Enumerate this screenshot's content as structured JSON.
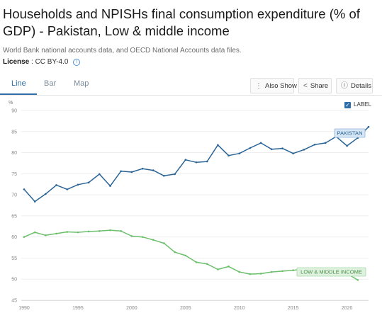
{
  "header": {
    "title": "Households and NPISHs final consumption expenditure (% of GDP) - Pakistan, Low & middle income",
    "source": "World Bank national accounts data, and OECD National Accounts data files.",
    "license_label": "License",
    "license_value": ": CC BY-4.0"
  },
  "tabs": [
    {
      "label": "Line",
      "active": true
    },
    {
      "label": "Bar",
      "active": false
    },
    {
      "label": "Map",
      "active": false
    }
  ],
  "actions": {
    "also_show": "Also Show",
    "share": "Share",
    "details": "Details"
  },
  "label_toggle": {
    "text": "LABEL",
    "checked": true
  },
  "colors": {
    "pakistan": "#2a6496",
    "lmi": "#6cbf6c",
    "accent": "#2f6ea8"
  },
  "chart_data": {
    "type": "line",
    "ylabel": "%",
    "ylim": [
      45,
      90
    ],
    "yticks": [
      "45",
      "50",
      "55",
      "60",
      "65",
      "70",
      "75",
      "80",
      "85",
      "90"
    ],
    "xlim": [
      1990,
      2022
    ],
    "xticks": [
      "1990",
      "1995",
      "2000",
      "2005",
      "2010",
      "2015",
      "2020"
    ],
    "grid": true,
    "series": [
      {
        "name": "PAKISTAN",
        "x": [
          1990,
          1991,
          1992,
          1993,
          1994,
          1995,
          1996,
          1997,
          1998,
          1999,
          2000,
          2001,
          2002,
          2003,
          2004,
          2005,
          2006,
          2007,
          2008,
          2009,
          2010,
          2011,
          2012,
          2013,
          2014,
          2015,
          2016,
          2017,
          2018,
          2019,
          2020,
          2021,
          2022
        ],
        "values": [
          71.3,
          68.4,
          70.2,
          72.3,
          71.3,
          72.4,
          72.9,
          74.9,
          72.1,
          75.6,
          75.4,
          76.2,
          75.8,
          74.5,
          74.9,
          78.3,
          77.7,
          77.9,
          81.8,
          79.3,
          79.8,
          81.1,
          82.3,
          80.8,
          81.0,
          79.8,
          80.7,
          81.9,
          82.3,
          83.8,
          81.6,
          83.5,
          86.1
        ]
      },
      {
        "name": "LOW & MIDDLE INCOME",
        "x": [
          1990,
          1991,
          1992,
          1993,
          1994,
          1995,
          1996,
          1997,
          1998,
          1999,
          2000,
          2001,
          2002,
          2003,
          2004,
          2005,
          2006,
          2007,
          2008,
          2009,
          2010,
          2011,
          2012,
          2013,
          2014,
          2015,
          2016,
          2017,
          2018,
          2019,
          2020,
          2021
        ],
        "values": [
          60.0,
          61.1,
          60.4,
          60.8,
          61.2,
          61.1,
          61.3,
          61.4,
          61.6,
          61.4,
          60.2,
          60.0,
          59.3,
          58.5,
          56.4,
          55.6,
          54.0,
          53.6,
          52.3,
          53.0,
          51.7,
          51.2,
          51.3,
          51.7,
          51.9,
          52.1,
          52.4,
          52.6,
          52.0,
          51.0,
          51.3,
          49.8
        ]
      }
    ]
  }
}
